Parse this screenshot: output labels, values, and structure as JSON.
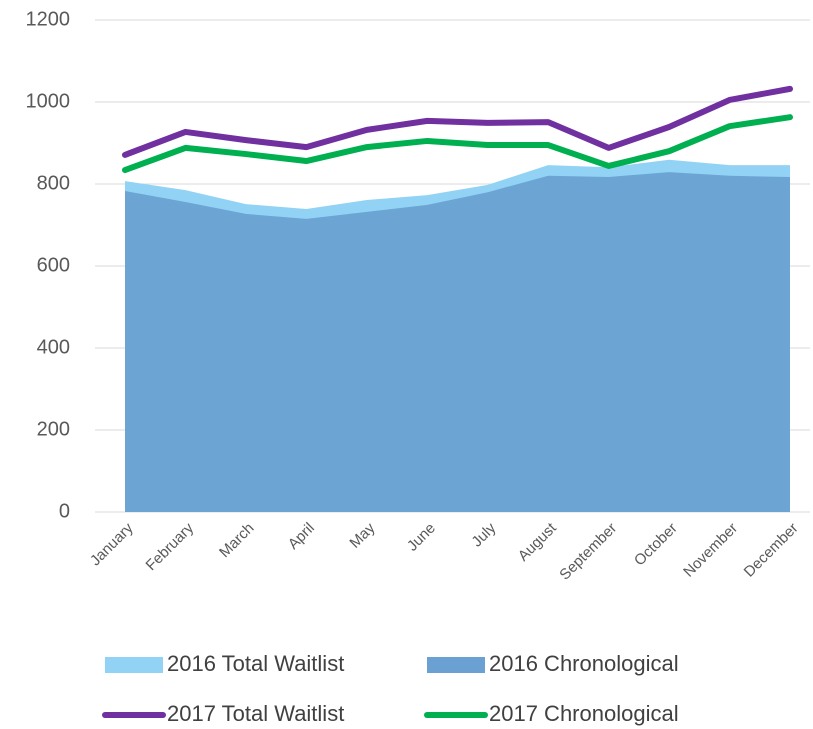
{
  "chart_data": {
    "type": "line",
    "categories": [
      "January",
      "February",
      "March",
      "April",
      "May",
      "June",
      "July",
      "August",
      "September",
      "October",
      "November",
      "December"
    ],
    "series": [
      {
        "name": "2016 Total Waitlist",
        "type": "area",
        "color": "#92d3f5",
        "values": [
          807,
          785,
          751,
          739,
          761,
          773,
          798,
          846,
          841,
          859,
          846,
          846
        ]
      },
      {
        "name": "2016 Chronological",
        "type": "area",
        "color": "#6aa1d2",
        "values": [
          783,
          756,
          727,
          715,
          732,
          749,
          780,
          820,
          817,
          829,
          820,
          817
        ]
      },
      {
        "name": "2017 Total Waitlist",
        "type": "line",
        "color": "#7030a0",
        "values": [
          871,
          927,
          907,
          890,
          932,
          954,
          949,
          951,
          888,
          939,
          1005,
          1032
        ]
      },
      {
        "name": "2017 Chronological",
        "type": "line",
        "color": "#00b050",
        "values": [
          834,
          888,
          873,
          856,
          890,
          905,
          895,
          895,
          844,
          880,
          941,
          963
        ]
      }
    ],
    "ylim": [
      0,
      1200
    ],
    "yticks": [
      0,
      200,
      400,
      600,
      800,
      1000,
      1200
    ],
    "grid": true,
    "legend": "bottom"
  }
}
